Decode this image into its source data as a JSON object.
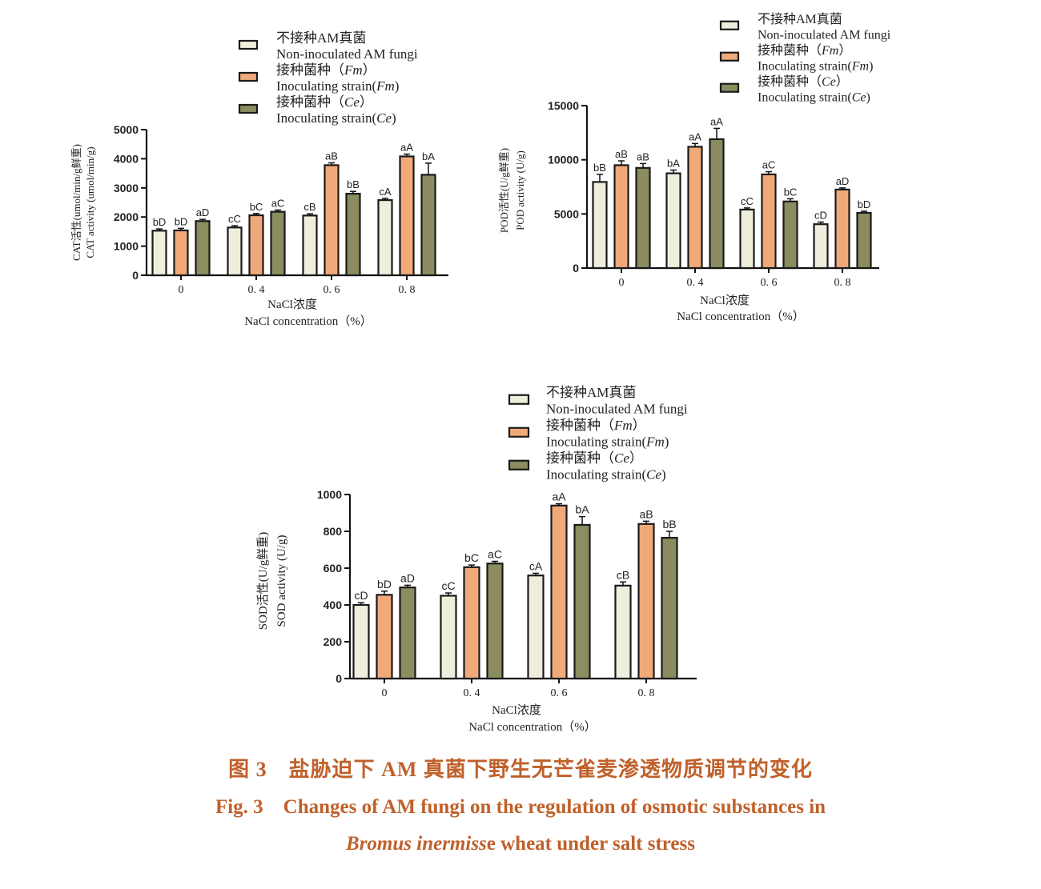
{
  "legend": [
    {
      "cn": "不接种AM真菌",
      "en": "Non-inoculated AM fungi",
      "color": "#efeedd"
    },
    {
      "cn": "接种菌种（",
      "cn_it": "Fm",
      "cn_end": "）",
      "en": "Inoculating strain(",
      "en_it": "Fm",
      "en_end": ")",
      "color": "#f0aa7a"
    },
    {
      "cn": "接种菌种（",
      "cn_it": "Ce",
      "cn_end": "）",
      "en": "Inoculating strain(",
      "en_it": "Ce",
      "en_end": ")",
      "color": "#8b8c5f"
    }
  ],
  "colors": {
    "bar_outline": "#1a1a1a",
    "caption": "#c0602a"
  },
  "chart_data": [
    {
      "id": "cat",
      "type": "bar",
      "ylabel_cn": "CAT活性(umol/min/g鲜重)",
      "ylabel_en": "CAT activity (umol/min/g)",
      "xlabel_cn": "NaCl浓度",
      "xlabel_en": "NaCl concentration（%）",
      "categories": [
        "0",
        "0. 4",
        "0. 6",
        "0. 8"
      ],
      "ylim": [
        0,
        5000
      ],
      "yticks": [
        0,
        1000,
        2000,
        3000,
        4000,
        5000
      ],
      "series": [
        {
          "name": "Non-inoculated AM fungi",
          "values": [
            1530,
            1640,
            2050,
            2580
          ],
          "errors": [
            60,
            60,
            60,
            60
          ],
          "labels": [
            "bD",
            "cC",
            "cB",
            "cA"
          ]
        },
        {
          "name": "Inoculating strain(Fm)",
          "values": [
            1540,
            2060,
            3780,
            4080
          ],
          "errors": [
            70,
            60,
            80,
            80
          ],
          "labels": [
            "bD",
            "bC",
            "aB",
            "aA"
          ]
        },
        {
          "name": "Inoculating strain(Ce)",
          "values": [
            1860,
            2180,
            2800,
            3450
          ],
          "errors": [
            60,
            60,
            80,
            400
          ],
          "labels": [
            "aD",
            "aC",
            "bB",
            "bA"
          ]
        }
      ]
    },
    {
      "id": "pod",
      "type": "bar",
      "ylabel_cn": "POD活性(U/g鲜重)",
      "ylabel_en": "POD activity (U/g)",
      "xlabel_cn": "NaCl浓度",
      "xlabel_en": "NaCl concentration（%）",
      "categories": [
        "0",
        "0. 4",
        "0. 6",
        "0. 8"
      ],
      "ylim": [
        0,
        15000
      ],
      "yticks": [
        0,
        5000,
        10000,
        15000
      ],
      "series": [
        {
          "name": "Non-inoculated AM fungi",
          "values": [
            7950,
            8750,
            5400,
            4050
          ],
          "errors": [
            700,
            300,
            150,
            200
          ],
          "labels": [
            "bB",
            "bA",
            "cC",
            "cD"
          ]
        },
        {
          "name": "Inoculating strain(Fm)",
          "values": [
            9500,
            11200,
            8650,
            7250
          ],
          "errors": [
            400,
            300,
            250,
            150
          ],
          "labels": [
            "aB",
            "aA",
            "aC",
            "aD"
          ]
        },
        {
          "name": "Inoculating strain(Ce)",
          "values": [
            9250,
            11900,
            6150,
            5100
          ],
          "errors": [
            400,
            1000,
            250,
            150
          ],
          "labels": [
            "aB",
            "aA",
            "bC",
            "bD"
          ]
        }
      ]
    },
    {
      "id": "sod",
      "type": "bar",
      "ylabel_cn": "SOD活性(U/g鲜重)",
      "ylabel_en": "SOD activity (U/g)",
      "xlabel_cn": "NaCl浓度",
      "xlabel_en": "NaCl concentration（%）",
      "categories": [
        "0",
        "0. 4",
        "0. 6",
        "0. 8"
      ],
      "ylim": [
        0,
        1000
      ],
      "yticks": [
        0,
        200,
        400,
        600,
        800,
        1000
      ],
      "series": [
        {
          "name": "Non-inoculated AM fungi",
          "values": [
            400,
            450,
            560,
            505
          ],
          "errors": [
            12,
            15,
            12,
            20
          ],
          "labels": [
            "cD",
            "cC",
            "cA",
            "cB"
          ]
        },
        {
          "name": "Inoculating strain(Fm)",
          "values": [
            455,
            605,
            940,
            840
          ],
          "errors": [
            20,
            12,
            10,
            15
          ],
          "labels": [
            "bD",
            "bC",
            "aA",
            "aB"
          ]
        },
        {
          "name": "Inoculating strain(Ce)",
          "values": [
            495,
            625,
            835,
            765
          ],
          "errors": [
            12,
            12,
            45,
            35
          ],
          "labels": [
            "aD",
            "aC",
            "bA",
            "bB"
          ]
        }
      ]
    }
  ],
  "caption": {
    "cn": "图 3　盐胁迫下 AM 真菌下野生无芒雀麦渗透物质调节的变化",
    "en_line1": "Fig. 3　Changes of AM fungi on the regulation of osmotic substances in",
    "en_line2_italic": "Bromus inermiss",
    "en_line2_rest": "e wheat under salt stress"
  }
}
